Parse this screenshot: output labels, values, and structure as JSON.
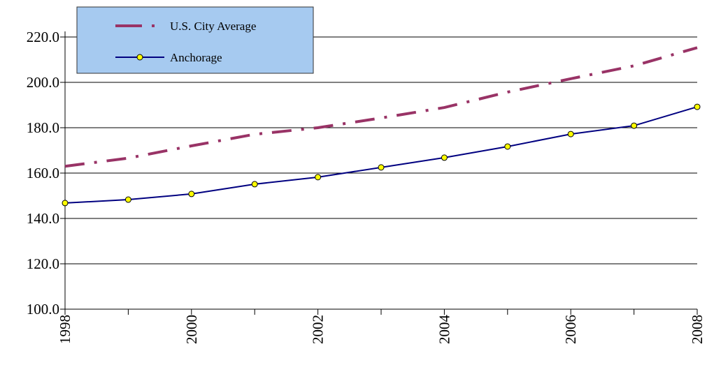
{
  "chart_data": {
    "type": "line",
    "x": [
      1998,
      1999,
      2000,
      2001,
      2002,
      2003,
      2004,
      2005,
      2006,
      2007,
      2008
    ],
    "series": [
      {
        "name": "U.S. City Average",
        "color": "#993366",
        "values": [
          163.0,
          166.6,
          172.0,
          177.1,
          180.0,
          184.3,
          188.9,
          195.7,
          201.6,
          207.3,
          215.3
        ]
      },
      {
        "name": "Anchorage",
        "color": "#000080",
        "values": [
          146.8,
          148.3,
          150.8,
          155.1,
          158.2,
          162.5,
          166.8,
          171.7,
          177.2,
          180.9,
          189.2
        ]
      }
    ],
    "xlim": [
      1998,
      2008
    ],
    "xticks": [
      1998,
      2000,
      2002,
      2004,
      2006,
      2008
    ],
    "ylim": [
      100,
      220
    ],
    "yticks": [
      {
        "value": 100,
        "label": "100.0"
      },
      {
        "value": 120,
        "label": "120.0"
      },
      {
        "value": 140,
        "label": "140.0"
      },
      {
        "value": 160,
        "label": "160.0"
      },
      {
        "value": 180,
        "label": "180.0"
      },
      {
        "value": 200,
        "label": "200.0"
      },
      {
        "value": 220,
        "label": "220.0"
      }
    ],
    "grid": true,
    "legend": "top-left"
  }
}
